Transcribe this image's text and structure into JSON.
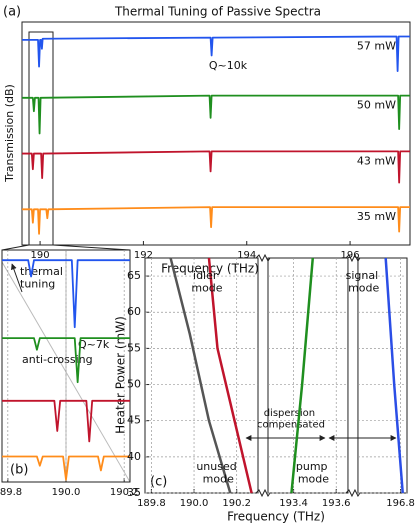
{
  "chart_data": [
    {
      "type": "line",
      "panel_label": "(a)",
      "title": "Thermal Tuning of Passive Spectra",
      "xlabel": "Frequency (THz)",
      "ylabel": "Transmission (dB)",
      "xlim": [
        189.65,
        197.16
      ],
      "ylim": [
        0,
        100
      ],
      "xticks": [
        190,
        192,
        194,
        196
      ],
      "grid": false,
      "annotations": [
        "Q~10k"
      ],
      "series": [
        {
          "name": "57 mW",
          "color": "#2255ee",
          "x": [
            189.65,
            189.96,
            189.98,
            190.0,
            190.02,
            190.035,
            190.05,
            193.3,
            193.32,
            193.34,
            196.9,
            196.92,
            196.94,
            197.16
          ],
          "values": [
            92,
            92,
            80,
            92,
            92,
            88,
            92.5,
            93,
            85,
            93,
            93.5,
            78,
            93.5,
            93.5
          ]
        },
        {
          "name": "50 mW",
          "color": "#1f8f1f",
          "x": [
            189.65,
            189.86,
            189.88,
            189.9,
            189.97,
            189.99,
            190.01,
            193.28,
            193.3,
            193.32,
            196.93,
            196.95,
            196.97,
            197.16
          ],
          "values": [
            66,
            66,
            60,
            66,
            66,
            50,
            66,
            67,
            57,
            67,
            67,
            52,
            67,
            67
          ]
        },
        {
          "name": "43 mW",
          "color": "#c0142c",
          "x": [
            189.65,
            189.84,
            189.86,
            189.88,
            190.02,
            190.04,
            190.06,
            193.28,
            193.3,
            193.32,
            196.93,
            196.95,
            196.97,
            197.16
          ],
          "values": [
            41,
            41,
            34,
            41,
            41,
            30,
            41,
            42,
            33,
            42,
            42,
            28,
            42,
            42
          ]
        },
        {
          "name": "35 mW",
          "color": "#ff8c1a",
          "x": [
            189.65,
            189.84,
            189.86,
            189.88,
            189.96,
            189.98,
            190.0,
            190.12,
            190.14,
            190.16,
            193.29,
            193.31,
            193.33,
            196.93,
            196.95,
            196.97,
            197.16
          ],
          "values": [
            16,
            16,
            10,
            16,
            16,
            5,
            16,
            16,
            12,
            16,
            17,
            8,
            17,
            17,
            6,
            17,
            17
          ]
        }
      ]
    },
    {
      "type": "line",
      "panel_label": "(b)",
      "xlim": [
        189.78,
        190.22
      ],
      "ylim": [
        0,
        100
      ],
      "xticks": [
        189.8,
        {
          "value": 190.0,
          "label": "190.0"
        },
        190.2
      ],
      "grid": true,
      "annotations": [
        "thermal tuning",
        "Q~7k",
        "anti-crossing"
      ],
      "series": [
        {
          "color": "#2255ee",
          "x": [
            189.78,
            189.87,
            189.88,
            189.89,
            190.02,
            190.03,
            190.04,
            190.22
          ],
          "values": [
            95.6,
            95.6,
            88.6,
            95.6,
            95.6,
            66.7,
            95.6,
            95.6
          ]
        },
        {
          "color": "#1f8f1f",
          "x": [
            189.78,
            189.89,
            189.9,
            189.91,
            190.03,
            190.04,
            190.05,
            190.22
          ],
          "values": [
            62,
            62,
            57,
            62,
            62,
            43,
            62,
            62
          ]
        },
        {
          "color": "#c0142c",
          "x": [
            189.78,
            189.96,
            189.97,
            189.98,
            190.07,
            190.08,
            190.09,
            190.22
          ],
          "values": [
            35,
            35,
            22,
            35,
            35,
            17.5,
            35,
            35
          ]
        },
        {
          "color": "#ff8c1a",
          "x": [
            189.78,
            189.9,
            189.91,
            189.92,
            189.99,
            190.0,
            190.01,
            190.11,
            190.12,
            190.13,
            190.22
          ],
          "values": [
            11,
            11,
            7,
            11,
            11,
            1,
            11,
            11,
            5,
            11,
            11
          ]
        }
      ]
    },
    {
      "type": "line",
      "panel_label": "(c)",
      "xlabel": "Frequency (THz)",
      "ylabel": "Heater Power (mW)",
      "xsegments": [
        [
          189.77,
          190.3
        ],
        [
          193.28,
          193.655
        ],
        [
          196.6,
          196.83
        ]
      ],
      "ylim": [
        35,
        67.5
      ],
      "yticks": [
        35,
        40,
        45,
        50,
        55,
        60,
        65
      ],
      "xticks": [
        189.8,
        {
          "value": 190.0,
          "label": "190.0"
        },
        190.2,
        193.4,
        193.6,
        196.8
      ],
      "grid": true,
      "annotations": [
        "dispersion compensated"
      ],
      "series": [
        {
          "name": "unused mode",
          "color": "#555555",
          "x": [
            189.89,
            189.98,
            190.07,
            190.17
          ],
          "values": [
            67.5,
            57,
            45,
            35
          ]
        },
        {
          "name": "idler mode",
          "color": "#c0142c",
          "x": [
            190.07,
            190.11,
            190.19,
            190.27
          ],
          "values": [
            67.5,
            55,
            45,
            35
          ]
        },
        {
          "name": "pump mode",
          "color": "#1f8f1f",
          "x": [
            193.49,
            193.44,
            193.39
          ],
          "values": [
            67.5,
            50,
            35
          ]
        },
        {
          "name": "signal mode",
          "color": "#2b4ee6",
          "x": [
            196.73,
            196.77,
            196.81
          ],
          "values": [
            67.5,
            50,
            35
          ]
        }
      ]
    }
  ]
}
